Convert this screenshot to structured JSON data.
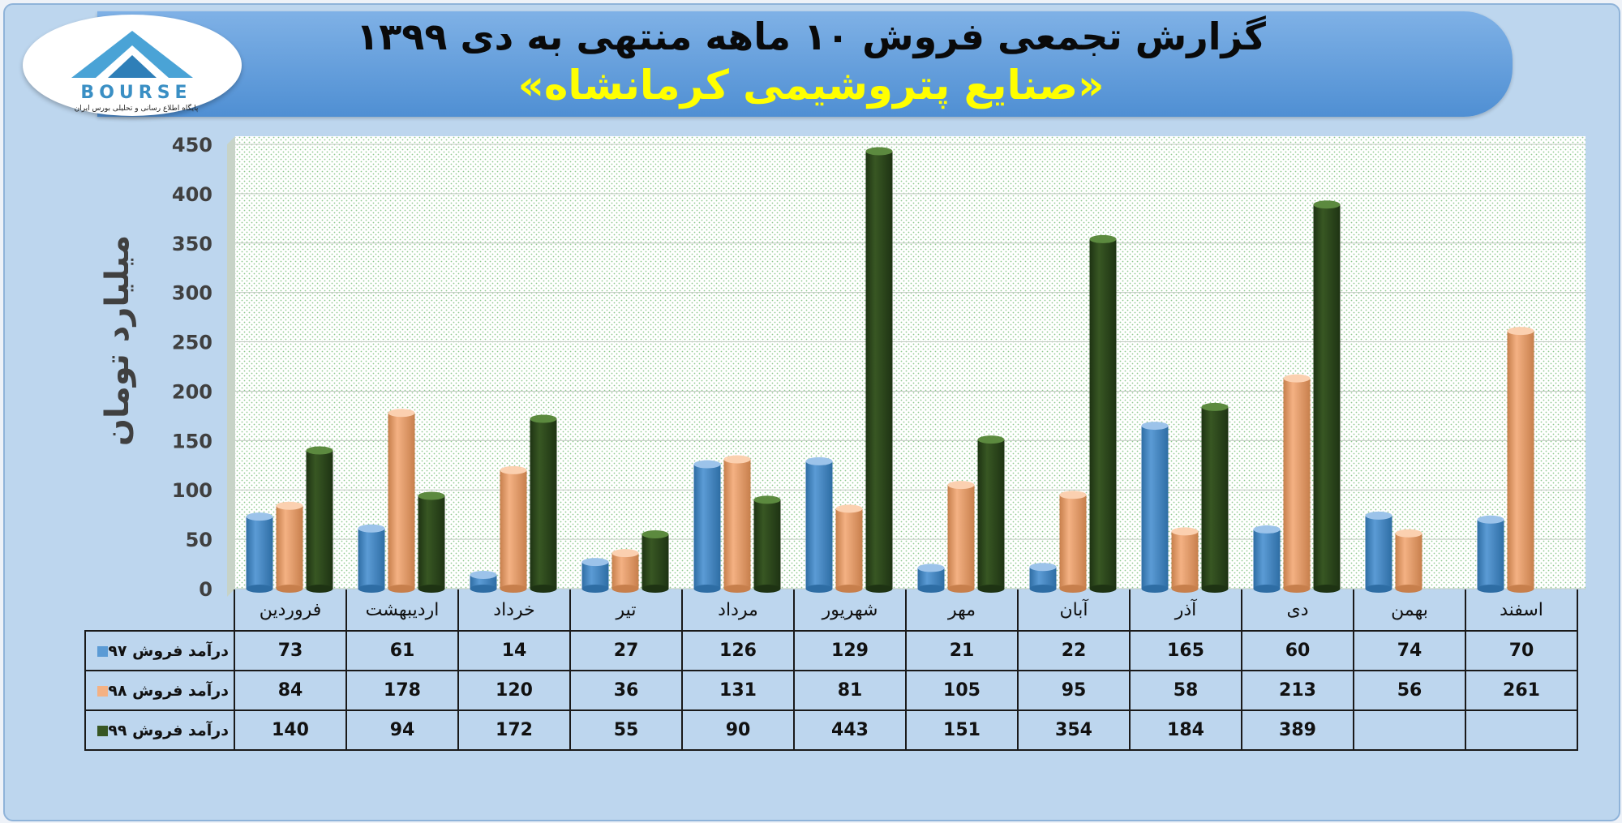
{
  "header": {
    "title_line1": "گزارش تجمعی فروش ۱۰ ماهه منتهی به دی ۱۳۹۹",
    "title_line2": "«صنایع پتروشیمی کرمانشاه»"
  },
  "logo": {
    "text": "BOURSE",
    "subtitle": "پایگاه اطلاع رسانی و تحلیلی بورس ایران"
  },
  "colors": {
    "series_97": "#5b9bd5",
    "series_98": "#f4b183",
    "series_99": "#385723",
    "title_accent": "#ffff00"
  },
  "chart_data": {
    "type": "bar",
    "ylabel": "میلیارد تومان",
    "ylim": [
      0,
      450
    ],
    "yticks": [
      0,
      50,
      100,
      150,
      200,
      250,
      300,
      350,
      400,
      450
    ],
    "grid": true,
    "categories": [
      "فروردین",
      "اردیبهشت",
      "خرداد",
      "تیر",
      "مرداد",
      "شهریور",
      "مهر",
      "آبان",
      "آذر",
      "دی",
      "بهمن",
      "اسفند"
    ],
    "series": [
      {
        "name": "درآمد فروش ۹۷",
        "values": [
          73,
          61,
          14,
          27,
          126,
          129,
          21,
          22,
          165,
          60,
          74,
          70
        ]
      },
      {
        "name": "درآمد فروش ۹۸",
        "values": [
          84,
          178,
          120,
          36,
          131,
          81,
          105,
          95,
          58,
          213,
          56,
          261
        ]
      },
      {
        "name": "درآمد فروش ۹۹",
        "values": [
          140,
          94,
          172,
          55,
          90,
          443,
          151,
          354,
          184,
          389,
          null,
          null
        ]
      }
    ]
  }
}
